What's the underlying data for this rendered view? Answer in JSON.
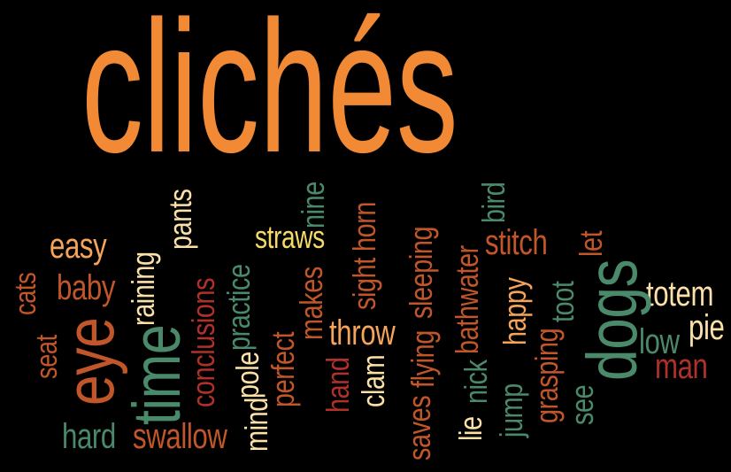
{
  "colors": {
    "background": "#000000",
    "orange": "#f28a35",
    "rust": "#c0562a",
    "dark_red": "#b0302a",
    "teal": "#4a8a6a",
    "sand": "#f3c890",
    "cream": "#fbe0a8",
    "yellow": "#f7d96a",
    "peach": "#f6a45a"
  },
  "words": {
    "cliches": "clichés",
    "easy": "easy",
    "baby": "baby",
    "cats": "cats",
    "seat": "seat",
    "eye": "eye",
    "hard": "hard",
    "swallow": "swallow",
    "time": "time",
    "raining": "raining",
    "pants": "pants",
    "conclusions": "conclusions",
    "practice": "practice",
    "pole": "pole",
    "mind": "mind",
    "perfect": "perfect",
    "straws": "straws",
    "nine": "nine",
    "makes": "makes",
    "horn": "horn",
    "sight": "sight",
    "throw": "throw",
    "hand": "hand",
    "clam": "clam",
    "sleeping": "sleeping",
    "flying": "flying",
    "saves": "saves",
    "bathwater": "bathwater",
    "nick": "nick",
    "lie": "lie",
    "bird": "bird",
    "stitch": "stitch",
    "happy": "happy",
    "jump": "jump",
    "grasping": "grasping",
    "toot": "toot",
    "see": "see",
    "let": "let",
    "dogs": "dogs",
    "totem": "totem",
    "pie": "pie",
    "low": "low",
    "man": "man"
  }
}
